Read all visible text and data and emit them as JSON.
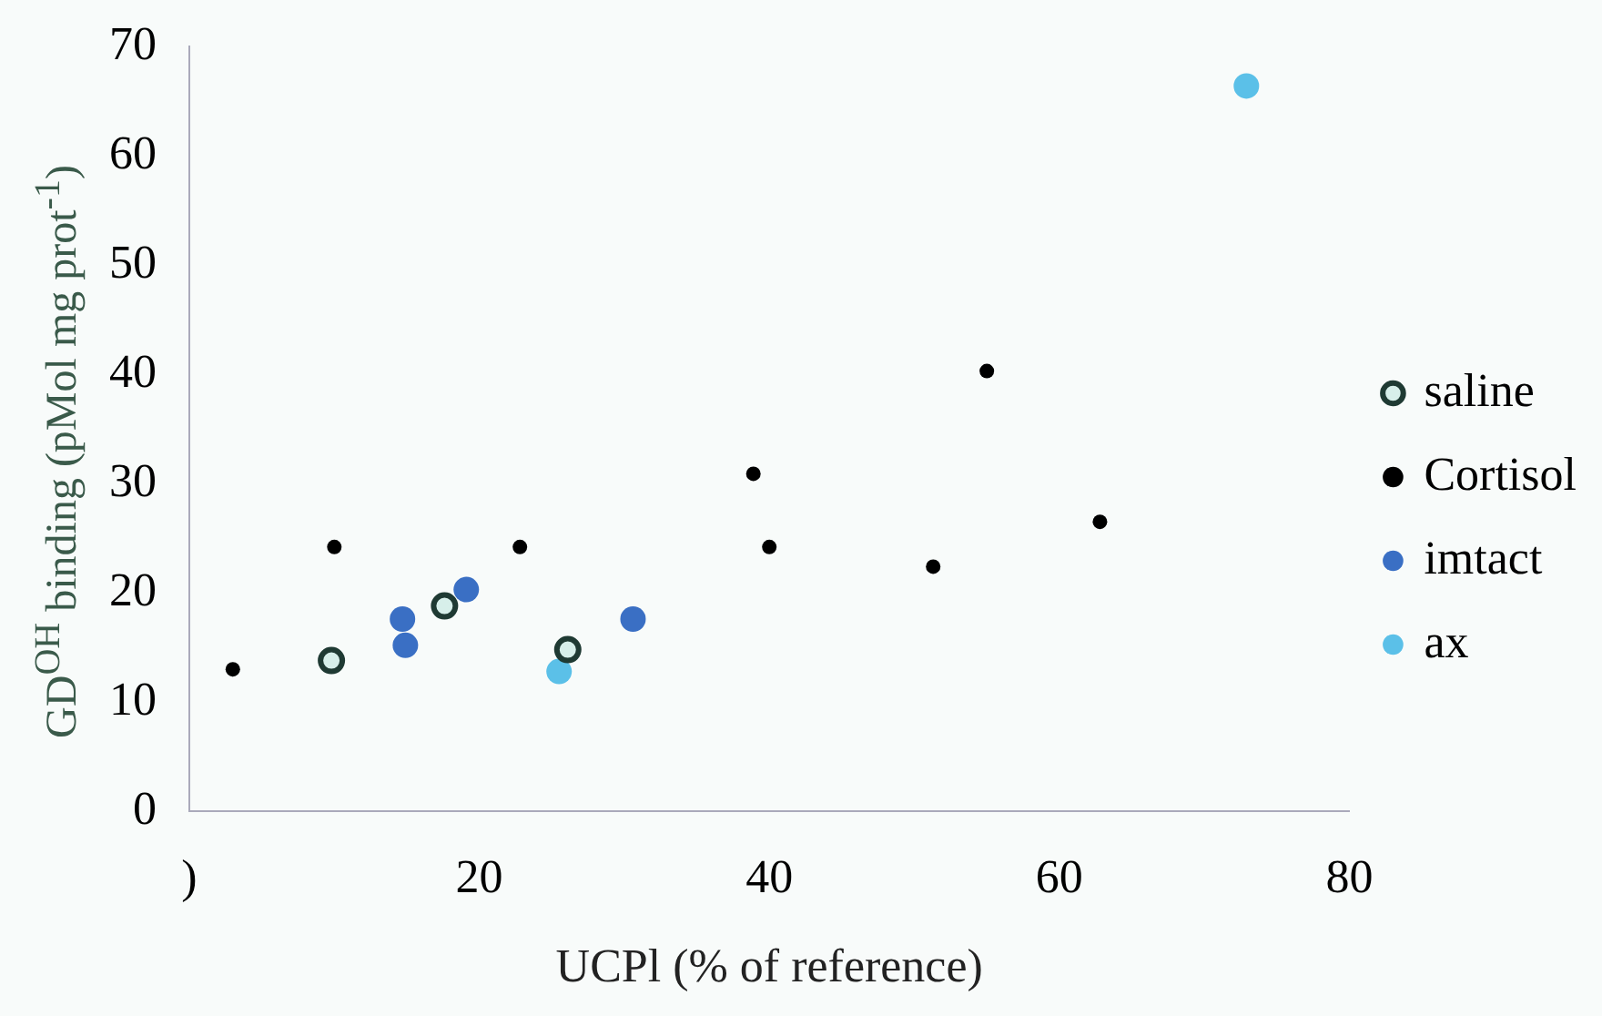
{
  "chart_data": {
    "type": "scatter",
    "xlabel": "UCPl (% of reference)",
    "ylabel": "GD$^{OH}$ binding (pMol mg prot$^{-1}$)",
    "xlim": [
      0,
      80
    ],
    "xticks": [
      {
        "value": 0,
        "label": ")"
      },
      20,
      40,
      60,
      80
    ],
    "ylim": [
      0,
      70
    ],
    "yticks": [
      0,
      10,
      20,
      30,
      40,
      50,
      60,
      70
    ],
    "grid": false,
    "legend": "right",
    "marker": "circle",
    "series": [
      {
        "name": "saline",
        "color": "#1f3a33",
        "x": [
          9.8,
          17.6,
          26.1
        ],
        "values": [
          13.8,
          18.8,
          14.8
        ]
      },
      {
        "name": "Cortisol",
        "color": "#000000",
        "x": [
          3,
          10,
          22.8,
          38.9,
          40,
          51.3,
          55,
          62.8
        ],
        "values": [
          13,
          24.2,
          24.2,
          30.9,
          24.2,
          22.4,
          40.3,
          26.5
        ]
      },
      {
        "name": "imtact",
        "color": "#3a6fc4",
        "x": [
          14.7,
          14.9,
          19.1,
          30.6
        ],
        "values": [
          17.6,
          15.2,
          20.3,
          17.6
        ]
      },
      {
        "name": "ax",
        "color": "#5bc0e8",
        "x": [
          25.5,
          72.9
        ],
        "values": [
          12.8,
          66.4
        ]
      }
    ]
  }
}
